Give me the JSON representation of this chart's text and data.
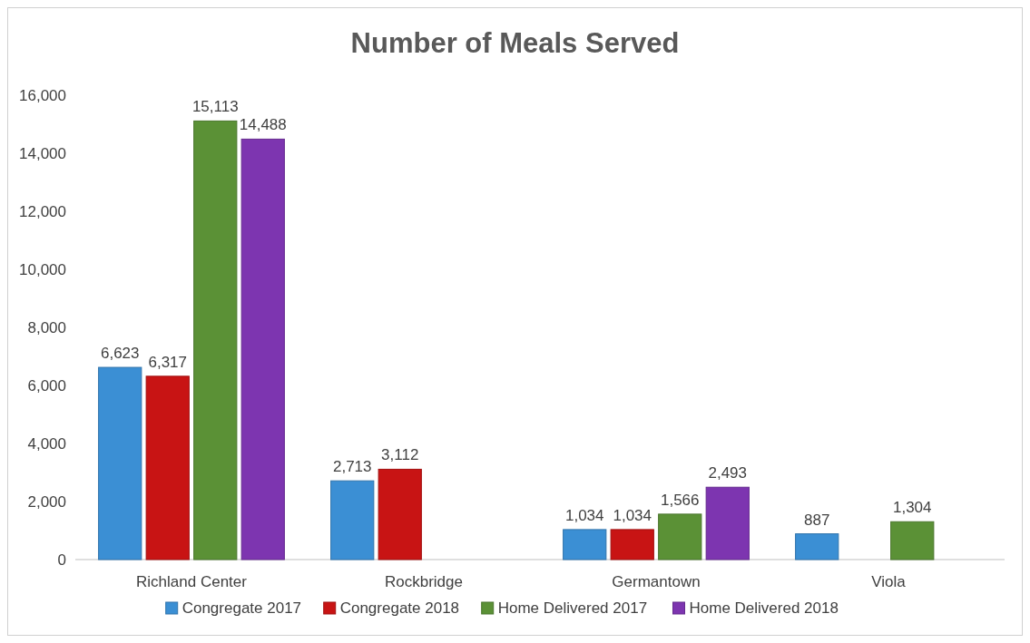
{
  "chart_data": {
    "type": "bar",
    "title": "Number of Meals Served",
    "categories": [
      "Richland Center",
      "Rockbridge",
      "Germantown",
      "Viola"
    ],
    "series": [
      {
        "name": "Congregate 2017",
        "color": "#3b8fd4",
        "values": [
          6623,
          2713,
          1034,
          887
        ],
        "value_labels": [
          "6,623",
          "2,713",
          "1,034",
          "887"
        ]
      },
      {
        "name": "Congregate 2018",
        "color": "#c81414",
        "values": [
          6317,
          3112,
          1034,
          null
        ],
        "value_labels": [
          "6,317",
          "3,112",
          "1,034",
          null
        ]
      },
      {
        "name": "Home Delivered 2017",
        "color": "#5b9136",
        "values": [
          15113,
          null,
          1566,
          1304
        ],
        "value_labels": [
          "15,113",
          null,
          "1,566",
          "1,304"
        ]
      },
      {
        "name": "Home Delivered 2018",
        "color": "#7d35b0",
        "values": [
          14488,
          null,
          2493,
          null
        ],
        "value_labels": [
          "14,488",
          null,
          "2,493",
          null
        ]
      }
    ],
    "ylim": [
      0,
      16000
    ],
    "yticks": [
      {
        "value": 0,
        "label": "0"
      },
      {
        "value": 2000,
        "label": "2,000"
      },
      {
        "value": 4000,
        "label": "4,000"
      },
      {
        "value": 6000,
        "label": "6,000"
      },
      {
        "value": 8000,
        "label": "8,000"
      },
      {
        "value": 10000,
        "label": "10,000"
      },
      {
        "value": 12000,
        "label": "12,000"
      },
      {
        "value": 14000,
        "label": "14,000"
      },
      {
        "value": 16000,
        "label": "16,000"
      }
    ],
    "grid": false,
    "legend": "bottom"
  }
}
